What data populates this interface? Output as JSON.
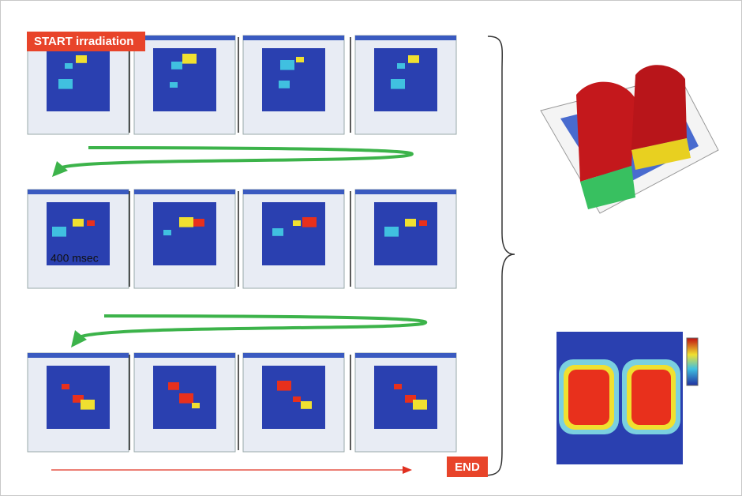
{
  "start_label": "START irradiation",
  "time_label": "400 msec",
  "end_label": "END"
}
